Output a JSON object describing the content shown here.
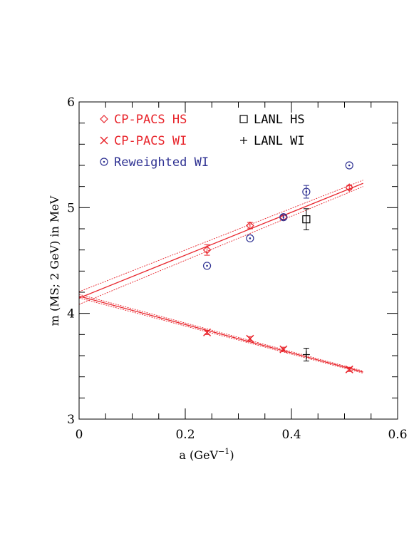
{
  "chart_data": {
    "type": "scatter",
    "xlabel": {
      "main": "a (GeV",
      "sup": "−1",
      "close": ")"
    },
    "ylabel": {
      "m": "m",
      "ms": "MS",
      "rest": "; 2 GeV)  in MeV"
    },
    "xlim": [
      0,
      0.6
    ],
    "ylim": [
      3,
      6
    ],
    "xticks": [
      0,
      0.2,
      0.4,
      0.6
    ],
    "xtick_labels": [
      "0",
      "0.2",
      "0.4",
      "0.6"
    ],
    "yticks": [
      3,
      4,
      5,
      6
    ],
    "ytick_labels": [
      "3",
      "4",
      "5",
      "6"
    ],
    "grid": false,
    "legend_position": "top-left",
    "colors": {
      "cppacs": "#e8242b",
      "reweighted": "#2e3192",
      "lanl": "#000000"
    },
    "series": [
      {
        "name": "CP-PACS HS",
        "marker": "diamond",
        "color": "#e8242b",
        "x": [
          0.241,
          0.322,
          0.385,
          0.509
        ],
        "y": [
          4.6,
          4.83,
          4.91,
          5.19
        ],
        "yerr": [
          0.05,
          0.03,
          0.02,
          0.02
        ]
      },
      {
        "name": "CP-PACS WI",
        "marker": "cross",
        "color": "#e8242b",
        "x": [
          0.241,
          0.322,
          0.385,
          0.509
        ],
        "y": [
          3.82,
          3.76,
          3.66,
          3.47
        ],
        "yerr": [
          0.02,
          0.02,
          0.02,
          0.02
        ]
      },
      {
        "name": "Reweighted WI",
        "marker": "circle",
        "color": "#2e3192",
        "x": [
          0.241,
          0.322,
          0.385,
          0.509
        ],
        "y": [
          4.45,
          4.71,
          4.91,
          5.4
        ],
        "yerr": [
          0.0,
          0.0,
          0.02,
          0.0
        ]
      },
      {
        "name": "LANL HS",
        "marker": "square",
        "color": "#000000",
        "x": [
          0.428
        ],
        "y": [
          4.89
        ],
        "yerr": [
          0.1
        ]
      },
      {
        "name": "LANL WI",
        "marker": "plus",
        "color": "#000000",
        "x": [
          0.428
        ],
        "y": [
          3.61
        ],
        "yerr": [
          0.06
        ]
      }
    ],
    "extra_errorbars": [
      {
        "x": 0.428,
        "y": 5.15,
        "yerr": 0.06,
        "color": "#2e3192"
      }
    ],
    "fits": [
      {
        "name": "",
        "color": "#e8242b",
        "x": [
          0,
          0.535
        ],
        "center": [
          4.145,
          5.23
        ],
        "upper": [
          4.205,
          5.26
        ],
        "lower": [
          4.085,
          5.2
        ]
      },
      {
        "name": "",
        "color": "#e8242b",
        "x": [
          0,
          0.535
        ],
        "center": [
          4.163,
          3.445
        ],
        "upper": [
          4.18,
          3.455
        ],
        "lower": [
          4.146,
          3.435
        ]
      }
    ]
  }
}
